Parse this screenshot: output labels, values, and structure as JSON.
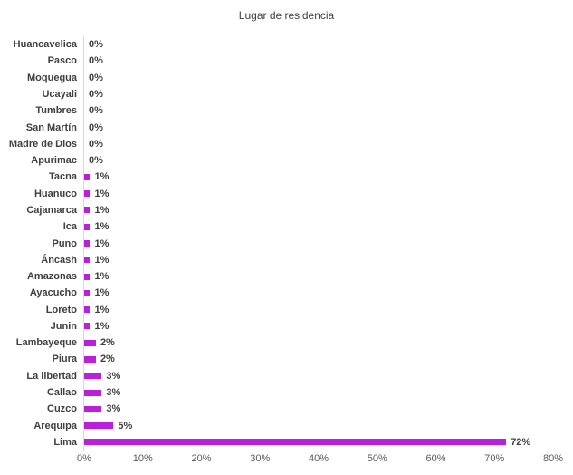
{
  "chart_data": {
    "type": "bar",
    "orientation": "horizontal",
    "title": "Lugar de residencia",
    "categories": [
      "Huancavelica",
      "Pasco",
      "Moquegua",
      "Ucayali",
      "Tumbres",
      "San Martín",
      "Madre de Dios",
      "Apurimac",
      "Tacna",
      "Huanuco",
      "Cajamarca",
      "Ica",
      "Puno",
      "Áncash",
      "Amazonas",
      "Ayacucho",
      "Loreto",
      "Junin",
      "Lambayeque",
      "Piura",
      "La libertad",
      "Callao",
      "Cuzco",
      "Arequipa",
      "Lima"
    ],
    "values": [
      0,
      0,
      0,
      0,
      0,
      0,
      0,
      0,
      1,
      1,
      1,
      1,
      1,
      1,
      1,
      1,
      1,
      1,
      2,
      2,
      3,
      3,
      3,
      5,
      72
    ],
    "value_labels": [
      "0%",
      "0%",
      "0%",
      "0%",
      "0%",
      "0%",
      "0%",
      "0%",
      "1%",
      "1%",
      "1%",
      "1%",
      "1%",
      "1%",
      "1%",
      "1%",
      "1%",
      "1%",
      "2%",
      "2%",
      "3%",
      "3%",
      "3%",
      "5%",
      "72%"
    ],
    "xlim": [
      0,
      80
    ],
    "x_ticks": [
      "0%",
      "10%",
      "20%",
      "30%",
      "40%",
      "50%",
      "60%",
      "70%",
      "80%"
    ],
    "grid": false,
    "legend": "none",
    "bar_color": "#b821d9",
    "label_color": "#404040",
    "tick_color": "#595959",
    "axis_line_color": "#d9d9d9"
  }
}
